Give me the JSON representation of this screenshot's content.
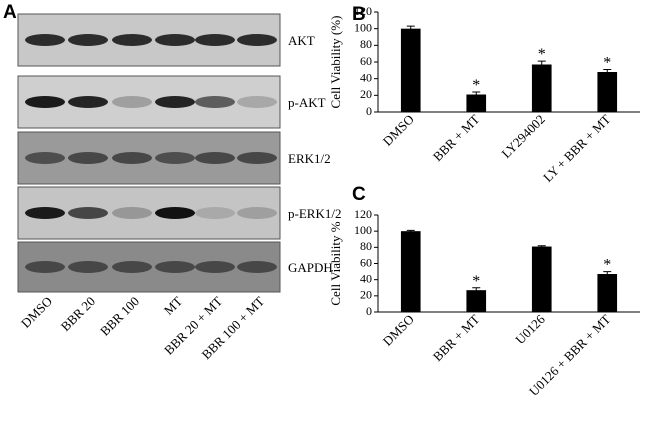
{
  "blot": {
    "label": "A",
    "proteins": [
      "AKT",
      "p-AKT",
      "ERK1/2",
      "p-ERK1/2",
      "GAPDH"
    ],
    "lanes": [
      "DMSO",
      "BBR 20",
      "BBR 100",
      "MT",
      "BBR 20 + MT",
      "BBR 100 + MT"
    ]
  },
  "chart_data": [
    {
      "type": "bar",
      "label": "B",
      "y_label": "Cell Viability (%)",
      "categories": [
        "DMSO",
        "BBR + MT",
        "LY294002",
        "LY + BBR + MT"
      ],
      "values": [
        100,
        21,
        57,
        48
      ],
      "errors": [
        3,
        3,
        4,
        3
      ],
      "value_labels": [
        null,
        "*",
        "*",
        "*"
      ],
      "color": "#000000",
      "ylim": [
        0,
        120
      ],
      "yticks": [
        0,
        20,
        40,
        60,
        80,
        100,
        120
      ]
    },
    {
      "type": "bar",
      "label": "C",
      "y_label": "Cell Viability %",
      "categories": [
        "DMSO",
        "BBR + MT",
        "U0126",
        "U0126 + BBR + MT"
      ],
      "values": [
        100,
        27,
        81,
        47
      ],
      "errors": [
        1,
        3,
        1,
        3
      ],
      "value_labels": [
        null,
        "*",
        null,
        "*"
      ],
      "color": "#000000",
      "ylim": [
        0,
        120
      ],
      "yticks": [
        0,
        20,
        40,
        60,
        80,
        100,
        120
      ]
    }
  ]
}
